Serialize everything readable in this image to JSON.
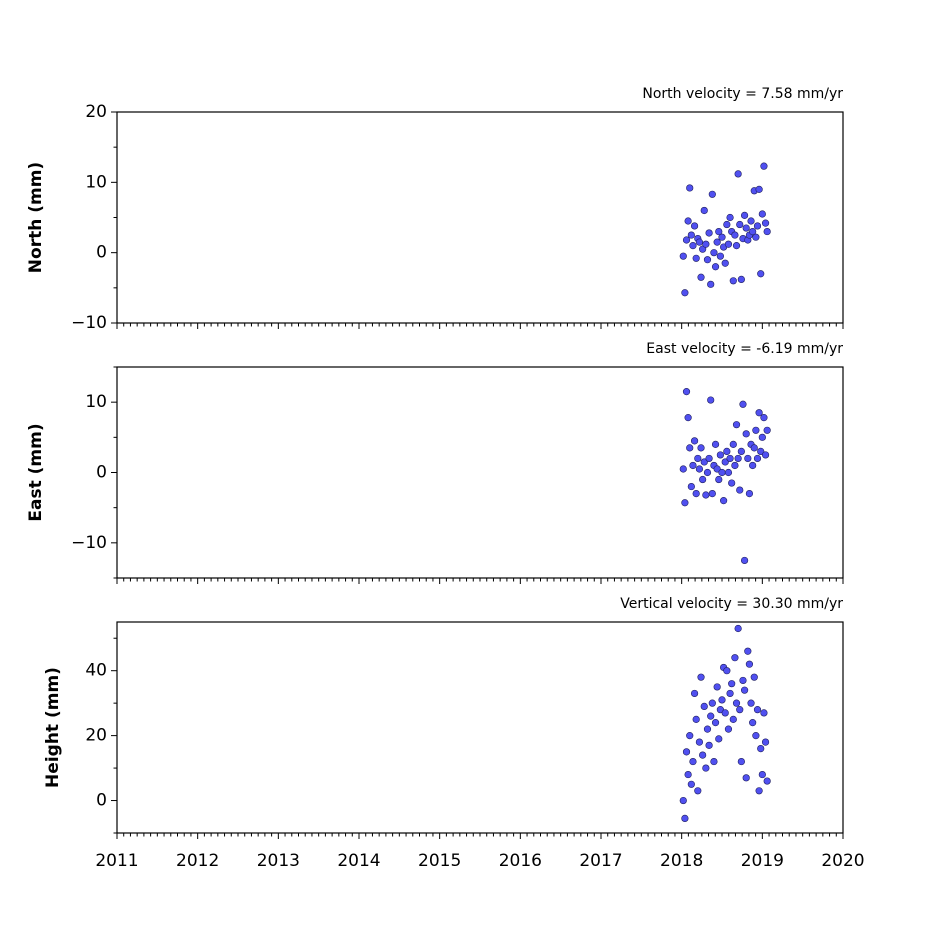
{
  "chart_data": [
    {
      "type": "scatter",
      "title": "North velocity = 7.58 mm/yr",
      "y_label": "North (mm)",
      "x": [
        2018.02,
        2018.04,
        2018.06,
        2018.08,
        2018.1,
        2018.12,
        2018.14,
        2018.16,
        2018.18,
        2018.2,
        2018.22,
        2018.24,
        2018.26,
        2018.28,
        2018.3,
        2018.32,
        2018.34,
        2018.36,
        2018.38,
        2018.4,
        2018.42,
        2018.44,
        2018.46,
        2018.48,
        2018.5,
        2018.52,
        2018.54,
        2018.56,
        2018.58,
        2018.6,
        2018.62,
        2018.64,
        2018.66,
        2018.68,
        2018.7,
        2018.72,
        2018.74,
        2018.76,
        2018.78,
        2018.8,
        2018.82,
        2018.84,
        2018.86,
        2018.88,
        2018.9,
        2018.92,
        2018.94,
        2018.96,
        2018.98,
        2019.0,
        2019.02,
        2019.04,
        2019.06
      ],
      "values": [
        -0.5,
        -5.7,
        1.8,
        4.5,
        9.2,
        2.5,
        1,
        3.8,
        -0.8,
        2,
        1.5,
        -3.5,
        0.5,
        6,
        1.2,
        -1,
        2.8,
        -4.5,
        8.3,
        0,
        -2,
        1.5,
        3,
        -0.5,
        2.2,
        0.8,
        -1.5,
        4,
        1.2,
        5,
        3,
        -4,
        2.5,
        1,
        11.2,
        4,
        -3.8,
        2,
        5.3,
        3.5,
        1.8,
        2.5,
        4.5,
        3,
        8.8,
        2.2,
        3.8,
        9,
        -3,
        5.5,
        12.3,
        4.2,
        3
      ],
      "color": "#5050f0",
      "edge_color": "#202060",
      "xlim": [
        2011,
        2020
      ],
      "xticks": [
        2011,
        2012,
        2013,
        2014,
        2015,
        2016,
        2017,
        2018,
        2019,
        2020
      ],
      "ylim": [
        -10,
        20
      ],
      "yticks": [
        {
          "value": -10,
          "label": "−10"
        },
        0,
        10,
        20
      ]
    },
    {
      "type": "scatter",
      "title": "East velocity = -6.19 mm/yr",
      "y_label": "East (mm)",
      "x": [
        2018.02,
        2018.04,
        2018.06,
        2018.08,
        2018.1,
        2018.12,
        2018.14,
        2018.16,
        2018.18,
        2018.2,
        2018.22,
        2018.24,
        2018.26,
        2018.28,
        2018.3,
        2018.32,
        2018.34,
        2018.36,
        2018.38,
        2018.4,
        2018.42,
        2018.44,
        2018.46,
        2018.48,
        2018.5,
        2018.52,
        2018.54,
        2018.56,
        2018.58,
        2018.6,
        2018.62,
        2018.64,
        2018.66,
        2018.68,
        2018.7,
        2018.72,
        2018.74,
        2018.76,
        2018.78,
        2018.8,
        2018.82,
        2018.84,
        2018.86,
        2018.88,
        2018.9,
        2018.92,
        2018.94,
        2018.96,
        2018.98,
        2019.0,
        2019.02,
        2019.04,
        2019.06
      ],
      "values": [
        0.5,
        -4.3,
        11.5,
        7.8,
        3.5,
        -2,
        1,
        4.5,
        -3,
        2,
        0.5,
        3.5,
        -1,
        1.5,
        -3.2,
        0,
        2,
        10.3,
        -3,
        1,
        4,
        0.5,
        -1,
        2.5,
        0,
        -4,
        1.5,
        3,
        0,
        2,
        -1.5,
        4,
        1,
        6.8,
        2,
        -2.5,
        3,
        9.7,
        -12.5,
        5.5,
        2,
        -3,
        4,
        1,
        3.5,
        6,
        2,
        8.5,
        3,
        5,
        7.8,
        2.5,
        6
      ],
      "color": "#5050f0",
      "edge_color": "#202060",
      "xlim": [
        2011,
        2020
      ],
      "xticks": [
        2011,
        2012,
        2013,
        2014,
        2015,
        2016,
        2017,
        2018,
        2019,
        2020
      ],
      "ylim": [
        -15,
        15
      ],
      "yticks": [
        {
          "value": -10,
          "label": "−10"
        },
        0,
        10
      ]
    },
    {
      "type": "scatter",
      "title": "Vertical velocity = 30.30 mm/yr",
      "y_label": "Height (mm)",
      "x": [
        2018.02,
        2018.04,
        2018.06,
        2018.08,
        2018.1,
        2018.12,
        2018.14,
        2018.16,
        2018.18,
        2018.2,
        2018.22,
        2018.24,
        2018.26,
        2018.28,
        2018.3,
        2018.32,
        2018.34,
        2018.36,
        2018.38,
        2018.4,
        2018.42,
        2018.44,
        2018.46,
        2018.48,
        2018.5,
        2018.52,
        2018.54,
        2018.56,
        2018.58,
        2018.6,
        2018.62,
        2018.64,
        2018.66,
        2018.68,
        2018.7,
        2018.72,
        2018.74,
        2018.76,
        2018.78,
        2018.8,
        2018.82,
        2018.84,
        2018.86,
        2018.88,
        2018.9,
        2018.92,
        2018.94,
        2018.96,
        2018.98,
        2019.0,
        2019.02,
        2019.04,
        2019.06
      ],
      "values": [
        0,
        -5.5,
        15,
        8,
        20,
        5,
        12,
        33,
        25,
        3,
        18,
        38,
        14,
        29,
        10,
        22,
        17,
        26,
        30,
        12,
        24,
        35,
        19,
        28,
        31,
        41,
        27,
        40,
        22,
        33,
        36,
        25,
        44,
        30,
        53,
        28,
        12,
        37,
        34,
        7,
        46,
        42,
        30,
        24,
        38,
        20,
        28,
        3,
        16,
        8,
        27,
        18,
        6
      ],
      "color": "#5050f0",
      "edge_color": "#202060",
      "xlim": [
        2011,
        2020
      ],
      "xticks": [
        2011,
        2012,
        2013,
        2014,
        2015,
        2016,
        2017,
        2018,
        2019,
        2020
      ],
      "ylim": [
        -10,
        55
      ],
      "yticks": [
        0,
        20,
        40
      ]
    }
  ]
}
